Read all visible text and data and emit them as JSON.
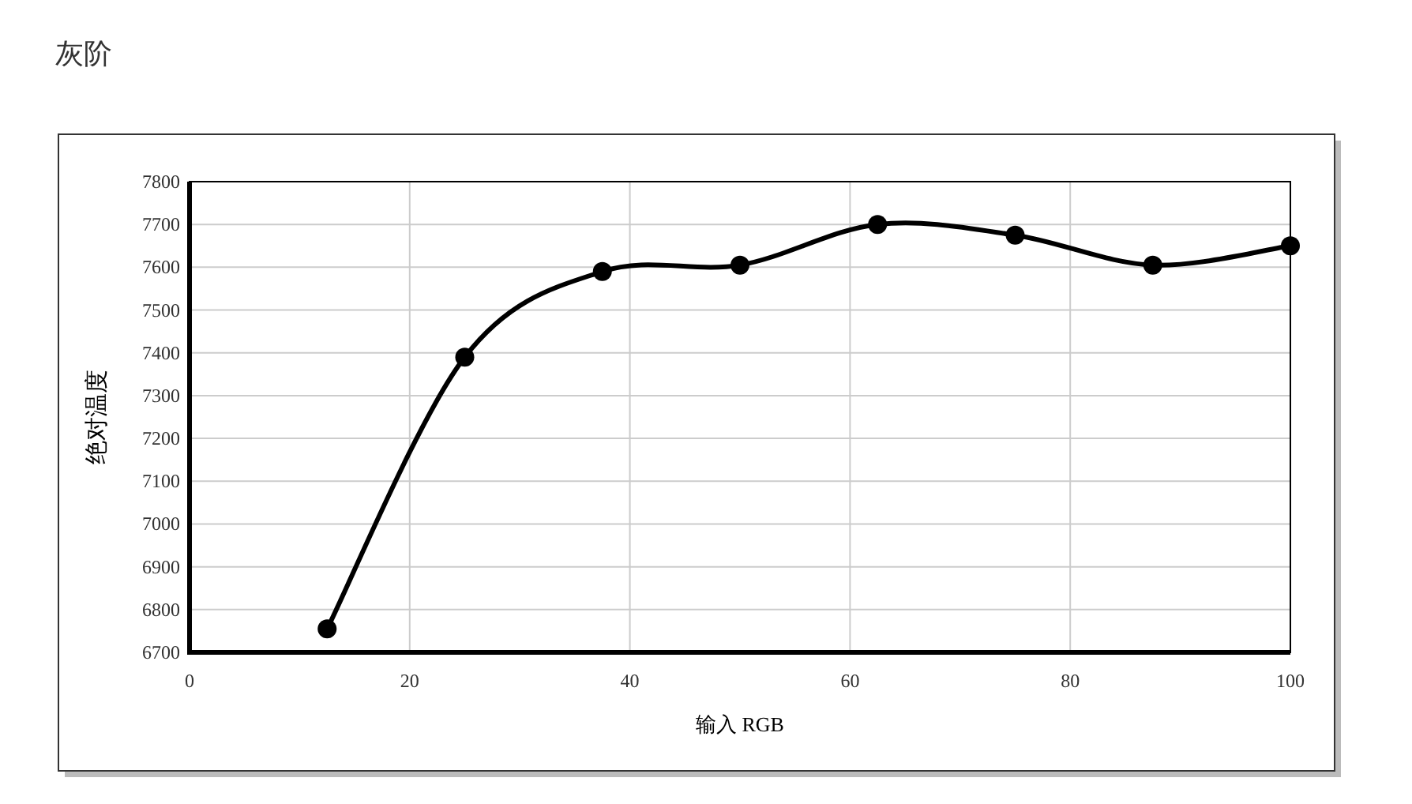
{
  "chart_data": {
    "type": "line",
    "title": "灰阶",
    "xlabel": "输入 RGB",
    "ylabel": "绝对温度",
    "x": [
      12.5,
      25,
      37.5,
      50,
      62.5,
      75,
      87.5,
      100
    ],
    "series": [
      {
        "color": "#000000",
        "values": [
          6755,
          7390,
          7590,
          7605,
          7700,
          7675,
          7605,
          7650
        ]
      }
    ],
    "xlim": [
      0,
      100
    ],
    "xticks": [
      0,
      20,
      40,
      60,
      80,
      100
    ],
    "ylim": [
      6700,
      7800
    ],
    "yticks": [
      6700,
      6800,
      6900,
      7000,
      7100,
      7200,
      7300,
      7400,
      7500,
      7600,
      7700,
      7800
    ],
    "grid": true,
    "marker": "circle",
    "line_style": "solid"
  }
}
